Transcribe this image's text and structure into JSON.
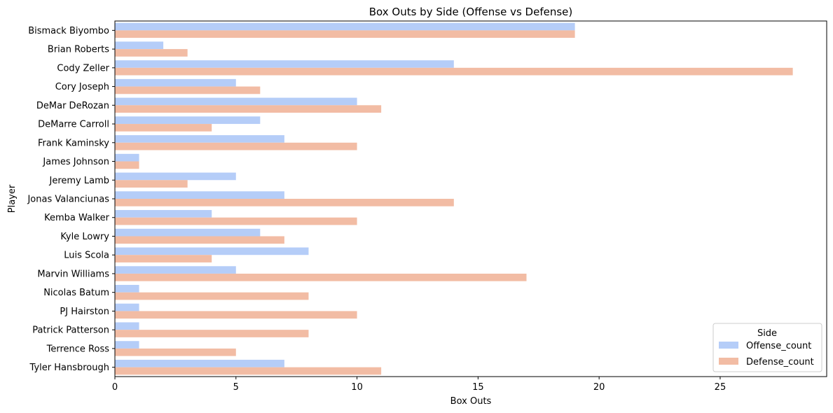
{
  "chart_data": {
    "type": "bar",
    "orientation": "horizontal",
    "title": "Box Outs by Side (Offense vs Defense)",
    "xlabel": "Box Outs",
    "ylabel": "Player",
    "xlim": [
      0,
      29.4
    ],
    "xticks": [
      0,
      5,
      10,
      15,
      20,
      25
    ],
    "grid": false,
    "legend_title": "Side",
    "legend_position": "lower-right",
    "categories": [
      "Bismack Biyombo",
      "Brian Roberts",
      "Cody Zeller",
      "Cory Joseph",
      "DeMar DeRozan",
      "DeMarre Carroll",
      "Frank Kaminsky",
      "James Johnson",
      "Jeremy Lamb",
      "Jonas Valanciunas",
      "Kemba Walker",
      "Kyle Lowry",
      "Luis Scola",
      "Marvin Williams",
      "Nicolas Batum",
      "PJ Hairston",
      "Patrick Patterson",
      "Terrence Ross",
      "Tyler Hansbrough"
    ],
    "series": [
      {
        "name": "Offense_count",
        "color": "#b5cdf8",
        "values": [
          19,
          2,
          14,
          5,
          10,
          6,
          7,
          1,
          5,
          7,
          4,
          6,
          8,
          5,
          1,
          1,
          1,
          1,
          7
        ]
      },
      {
        "name": "Defense_count",
        "color": "#f2bca4",
        "values": [
          19,
          3,
          28,
          6,
          11,
          4,
          10,
          1,
          3,
          14,
          10,
          7,
          4,
          17,
          8,
          10,
          8,
          5,
          11
        ]
      }
    ]
  }
}
